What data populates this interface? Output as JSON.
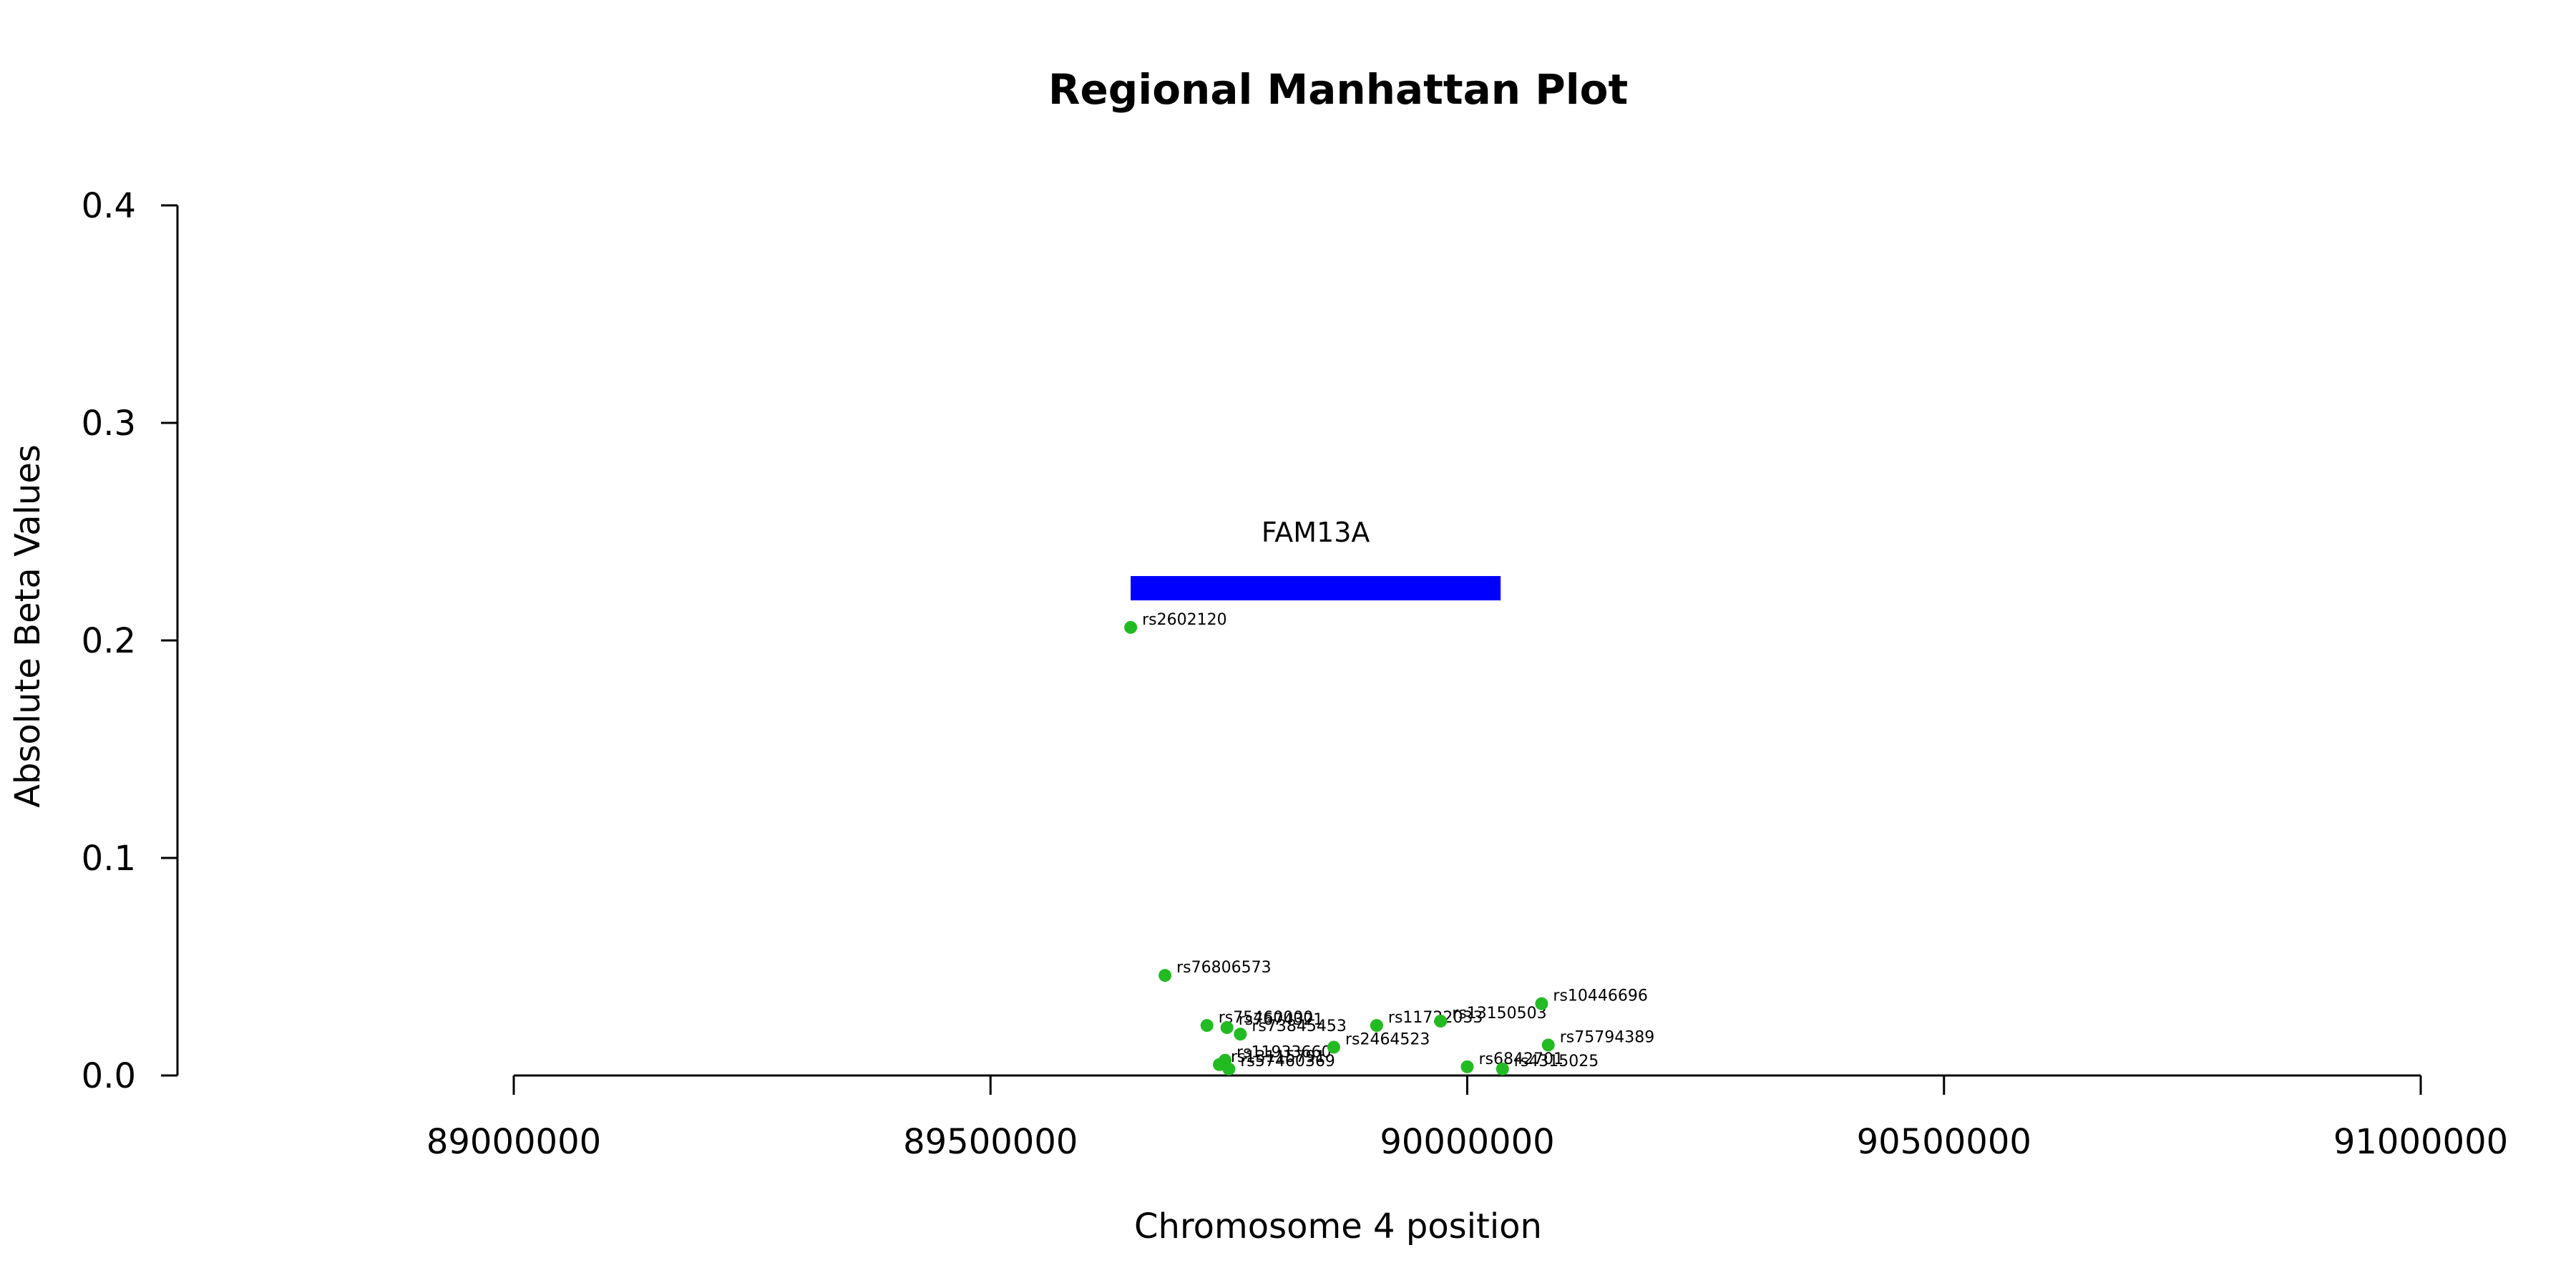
{
  "chart_data": {
    "type": "scatter",
    "title": "Regional Manhattan Plot",
    "xlabel": "Chromosome 4 position",
    "ylabel": "Absolute Beta Values",
    "xlim": [
      89000000,
      91000000
    ],
    "ylim": [
      0,
      0.4
    ],
    "x_ticks": [
      "89000000",
      "89500000",
      "90000000",
      "90500000",
      "91000000"
    ],
    "y_ticks": [
      "0.0",
      "0.1",
      "0.2",
      "0.3",
      "0.4"
    ],
    "gene": {
      "name": "FAM13A",
      "start": 89647000,
      "end": 90035000,
      "y": 0.224,
      "color": "#0000FF"
    },
    "point_color": "#22BB22",
    "points": [
      {
        "label": "rs2602120",
        "x": 89647000,
        "y": 0.206
      },
      {
        "label": "rs76806573",
        "x": 89683000,
        "y": 0.046
      },
      {
        "label": "rs75460000",
        "x": 89727000,
        "y": 0.023
      },
      {
        "label": "rs73845453",
        "x": 89762000,
        "y": 0.019
      },
      {
        "label": "rs7674321",
        "x": 89748000,
        "y": 0.022
      },
      {
        "label": "rs13115791",
        "x": 89740000,
        "y": 0.005
      },
      {
        "label": "rs11933660",
        "x": 89746000,
        "y": 0.007
      },
      {
        "label": "rs57460369",
        "x": 89750000,
        "y": 0.003
      },
      {
        "label": "rs2464523",
        "x": 89860000,
        "y": 0.013
      },
      {
        "label": "rs11722033",
        "x": 89905000,
        "y": 0.023
      },
      {
        "label": "rs13150503",
        "x": 89972000,
        "y": 0.025
      },
      {
        "label": "rs6842701",
        "x": 90000000,
        "y": 0.004
      },
      {
        "label": "rs4315025",
        "x": 90037000,
        "y": 0.003
      },
      {
        "label": "rs10446696",
        "x": 90078000,
        "y": 0.033
      },
      {
        "label": "rs75794389",
        "x": 90085000,
        "y": 0.014
      }
    ]
  }
}
